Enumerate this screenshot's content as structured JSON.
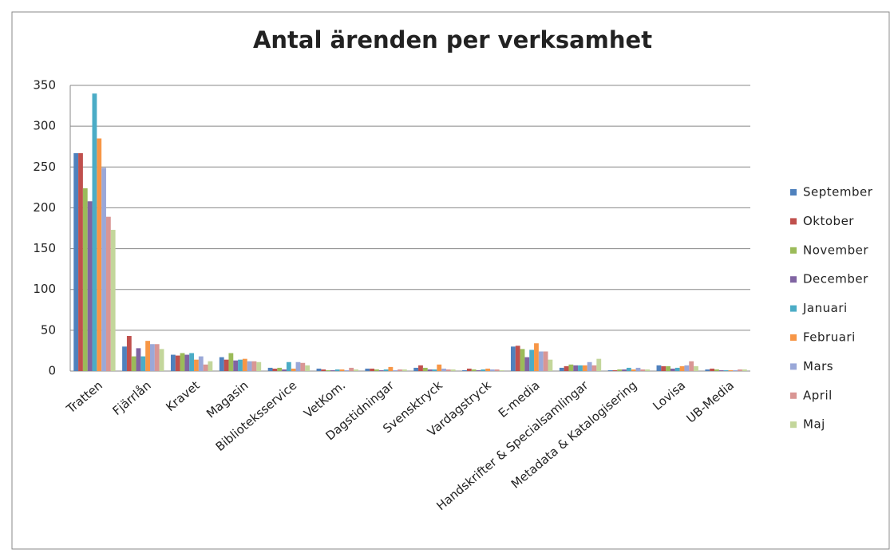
{
  "chart_data": {
    "type": "bar",
    "title": "Antal ärenden per verksamhet",
    "categories": [
      "Tratten",
      "Fjärrlån",
      "Kravet",
      "Magasin",
      "Biblioteksservice",
      "VetKom.",
      "Dagstidningar",
      "Svensktryck",
      "Vardagstryck",
      "E-media",
      "Handskrifter & Specialsamlingar",
      "Metadata & Katalogisering",
      "Lovisa",
      "UB-Media"
    ],
    "series": [
      {
        "name": "September",
        "color": "#4f81bd",
        "values": [
          267,
          30,
          20,
          17,
          4,
          3,
          3,
          4,
          1,
          30,
          4,
          1,
          7,
          2
        ]
      },
      {
        "name": "Oktober",
        "color": "#c0504d",
        "values": [
          267,
          43,
          19,
          14,
          3,
          2,
          3,
          7,
          3,
          31,
          6,
          1,
          6,
          3
        ]
      },
      {
        "name": "November",
        "color": "#9bbb59",
        "values": [
          224,
          18,
          22,
          22,
          4,
          1,
          2,
          4,
          2,
          27,
          8,
          2,
          6,
          2
        ]
      },
      {
        "name": "December",
        "color": "#8064a2",
        "values": [
          208,
          28,
          20,
          13,
          2,
          1,
          1,
          2,
          1,
          17,
          7,
          2,
          3,
          1
        ]
      },
      {
        "name": "Januari",
        "color": "#4bacc6",
        "values": [
          340,
          18,
          22,
          14,
          11,
          2,
          2,
          2,
          2,
          26,
          7,
          4,
          4,
          1
        ]
      },
      {
        "name": "Februari",
        "color": "#f79646",
        "values": [
          285,
          37,
          14,
          15,
          3,
          2,
          5,
          8,
          3,
          34,
          7,
          2,
          6,
          1
        ]
      },
      {
        "name": "Mars",
        "color": "#9aa8d8",
        "values": [
          249,
          33,
          18,
          12,
          11,
          1,
          1,
          3,
          2,
          24,
          11,
          4,
          7,
          1
        ]
      },
      {
        "name": "April",
        "color": "#d99694",
        "values": [
          189,
          33,
          8,
          12,
          10,
          4,
          2,
          2,
          2,
          24,
          7,
          2,
          12,
          2
        ]
      },
      {
        "name": "Maj",
        "color": "#c3d69b",
        "values": [
          173,
          27,
          12,
          11,
          7,
          2,
          2,
          2,
          1,
          14,
          15,
          2,
          6,
          2
        ]
      }
    ],
    "ylim": [
      0,
      350
    ],
    "yticks": [
      0,
      50,
      100,
      150,
      200,
      250,
      300,
      350
    ],
    "grid": true,
    "legend": "right"
  }
}
